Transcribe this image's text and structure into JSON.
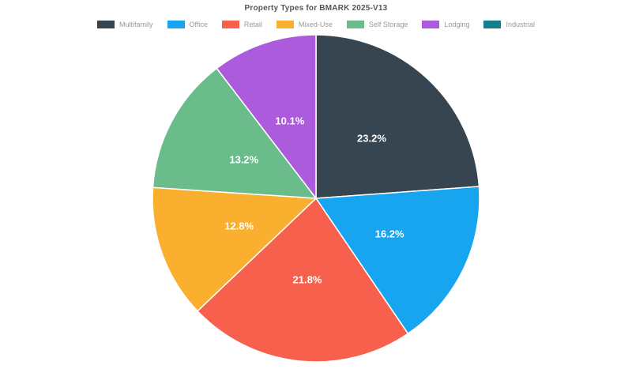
{
  "page": {
    "background": "#FFFFFF"
  },
  "header": {
    "title": "Property Types for BMARK 2025-V13",
    "title_color": "#565656"
  },
  "legend": {
    "position": "top",
    "text_color": "#999999",
    "items": [
      {
        "label": "Multifamily",
        "color": "#36454F"
      },
      {
        "label": "Office",
        "color": "#18A5F0"
      },
      {
        "label": "Retail",
        "color": "#F6604D"
      },
      {
        "label": "Mixed-Use",
        "color": "#FAAF2F"
      },
      {
        "label": "Self Storage",
        "color": "#6ABD8B"
      },
      {
        "label": "Lodging",
        "color": "#AB5BDC"
      },
      {
        "label": "Industrial",
        "color": "#12808C"
      }
    ]
  },
  "chart_data": {
    "type": "pie",
    "title": "Property Types for BMARK 2025-V13",
    "legend_position": "top",
    "start_angle_deg": 0,
    "direction": "clockwise",
    "slice_label_color": "#FFFFFF",
    "slice_border_color": "#FFFFFF",
    "slices": [
      {
        "label": "Multifamily",
        "value": 23.2,
        "display": "23.2%",
        "color": "#36454F"
      },
      {
        "label": "Office",
        "value": 16.2,
        "display": "16.2%",
        "color": "#18A5F0"
      },
      {
        "label": "Retail",
        "value": 21.8,
        "display": "21.8%",
        "color": "#F6604D"
      },
      {
        "label": "Mixed-Use",
        "value": 12.8,
        "display": "12.8%",
        "color": "#FAAF2F"
      },
      {
        "label": "Self Storage",
        "value": 13.2,
        "display": "13.2%",
        "color": "#6ABD8B"
      },
      {
        "label": "Lodging",
        "value": 10.1,
        "display": "10.1%",
        "color": "#AB5BDC"
      }
    ],
    "note": "Industrial appears in the legend but no Industrial slice is visible in the pie; visible slice percentages sum to 97.3 and slice angles are normalized to the full circle."
  }
}
